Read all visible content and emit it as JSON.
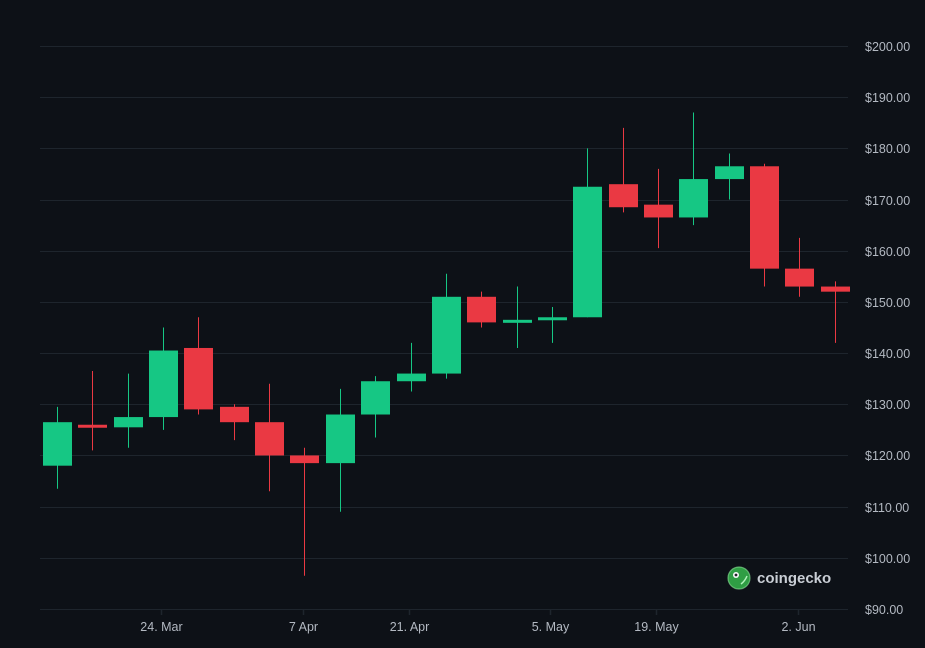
{
  "chart_data": {
    "type": "candlestick",
    "title": "",
    "xlabel": "",
    "ylabel": "",
    "ylim": [
      90,
      200
    ],
    "grid": true,
    "colors": {
      "up": "#16c784",
      "down": "#ea3943",
      "grid": "#1e252d",
      "text": "#b3b9c2",
      "background": "#0d1117"
    },
    "y_ticks": [
      "$200.00",
      "$190.00",
      "$180.00",
      "$170.00",
      "$160.00",
      "$150.00",
      "$140.00",
      "$130.00",
      "$120.00",
      "$110.00",
      "$100.00",
      "$90.00"
    ],
    "x_ticks": [
      {
        "label": "24. Mar",
        "index": 3
      },
      {
        "label": "7 Apr",
        "index": 7
      },
      {
        "label": "21. Apr",
        "index": 10
      },
      {
        "label": "5. May",
        "index": 14
      },
      {
        "label": "19. May",
        "index": 17
      },
      {
        "label": "2. Jun",
        "index": 21
      }
    ],
    "candles": [
      {
        "open": 118.0,
        "high": 129.5,
        "low": 113.5,
        "close": 126.5
      },
      {
        "open": 126.0,
        "high": 136.5,
        "low": 121.0,
        "close": 125.5
      },
      {
        "open": 125.5,
        "high": 136.0,
        "low": 121.5,
        "close": 127.5
      },
      {
        "open": 127.5,
        "high": 145.0,
        "low": 125.0,
        "close": 140.5
      },
      {
        "open": 141.0,
        "high": 147.0,
        "low": 128.0,
        "close": 129.0
      },
      {
        "open": 129.5,
        "high": 130.0,
        "low": 123.0,
        "close": 126.5
      },
      {
        "open": 126.5,
        "high": 134.0,
        "low": 113.0,
        "close": 120.0
      },
      {
        "open": 120.0,
        "high": 121.5,
        "low": 96.5,
        "close": 118.5
      },
      {
        "open": 118.5,
        "high": 133.0,
        "low": 109.0,
        "close": 128.0
      },
      {
        "open": 128.0,
        "high": 135.5,
        "low": 123.5,
        "close": 134.5
      },
      {
        "open": 134.5,
        "high": 142.0,
        "low": 132.5,
        "close": 136.0
      },
      {
        "open": 136.0,
        "high": 155.5,
        "low": 135.0,
        "close": 151.0
      },
      {
        "open": 151.0,
        "high": 152.0,
        "low": 145.0,
        "close": 146.0
      },
      {
        "open": 146.0,
        "high": 153.0,
        "low": 141.0,
        "close": 146.5
      },
      {
        "open": 146.5,
        "high": 149.0,
        "low": 142.0,
        "close": 147.0
      },
      {
        "open": 147.0,
        "high": 180.0,
        "low": 147.0,
        "close": 172.5
      },
      {
        "open": 173.0,
        "high": 184.0,
        "low": 167.5,
        "close": 168.5
      },
      {
        "open": 169.0,
        "high": 176.0,
        "low": 160.5,
        "close": 166.5
      },
      {
        "open": 166.5,
        "high": 187.0,
        "low": 165.0,
        "close": 174.0
      },
      {
        "open": 174.0,
        "high": 179.0,
        "low": 170.0,
        "close": 176.5
      },
      {
        "open": 176.5,
        "high": 177.0,
        "low": 153.0,
        "close": 156.5
      },
      {
        "open": 156.5,
        "high": 162.5,
        "low": 151.0,
        "close": 153.0
      },
      {
        "open": 153.0,
        "high": 154.0,
        "low": 142.0,
        "close": 152.0
      }
    ]
  },
  "watermark": {
    "text": "coingecko",
    "icon": "gecko-logo-icon"
  }
}
